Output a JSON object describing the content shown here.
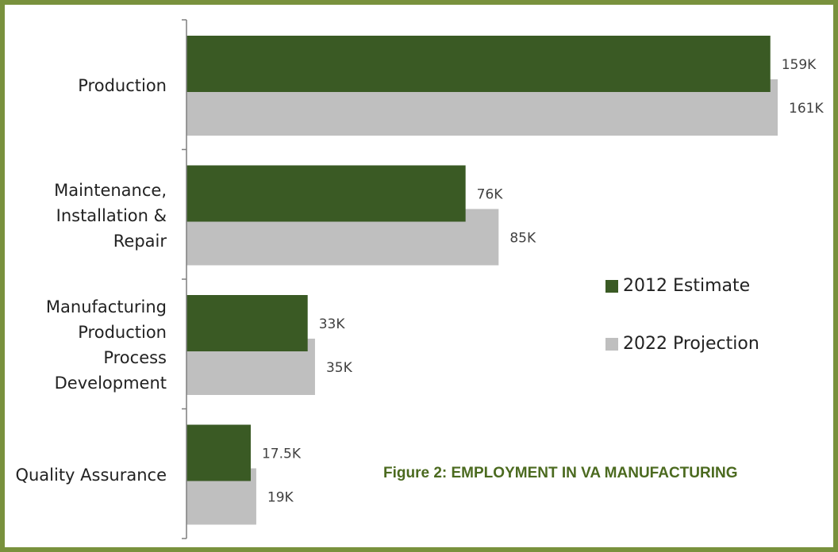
{
  "colors": {
    "frame": "#79913d",
    "series_2012": "#3a5a24",
    "series_2022": "#bfbfbf",
    "axis": "#7f7f7f",
    "caption": "#4b6a1f"
  },
  "caption": "Figure 2: EMPLOYMENT IN VA MANUFACTURING",
  "legend": {
    "entries": [
      "2012 Estimate",
      "2022 Projection"
    ]
  },
  "chart_data": {
    "type": "bar",
    "orientation": "horizontal",
    "title": "",
    "xlabel": "",
    "ylabel": "",
    "categories": [
      [
        "Production"
      ],
      [
        "Maintenance,",
        "Installation &",
        "Repair"
      ],
      [
        "Manufacturing",
        "Production",
        "Process",
        "Development"
      ],
      [
        "Quality Assurance"
      ]
    ],
    "series": [
      {
        "name": "2012 Estimate",
        "values": [
          159,
          76,
          33,
          17.5
        ],
        "labels": [
          "159K",
          "76K",
          "33K",
          "17.5K"
        ]
      },
      {
        "name": "2022 Projection",
        "values": [
          161,
          85,
          35,
          19
        ],
        "labels": [
          "161K",
          "85K",
          "35K",
          "19K"
        ]
      }
    ],
    "xlim": [
      0,
      161
    ],
    "grid": false,
    "legend_position": "right"
  }
}
